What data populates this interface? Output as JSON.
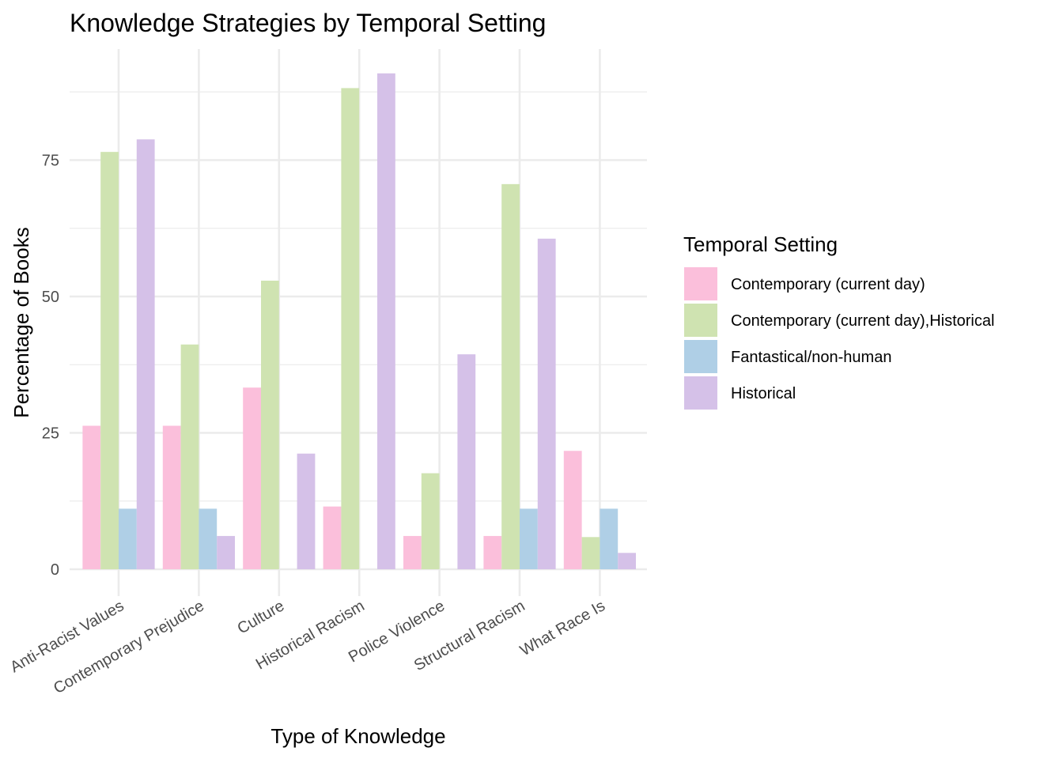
{
  "chart_data": {
    "type": "bar",
    "title": "Knowledge Strategies by Temporal Setting",
    "xlabel": "Type of Knowledge",
    "ylabel": "Percentage of Books",
    "categories": [
      "Anti-Racist Values",
      "Contemporary Prejudice",
      "Culture",
      "Historical Racism",
      "Police Violence",
      "Structural Racism",
      "What Race Is"
    ],
    "y_ticks": [
      0,
      25,
      50,
      75
    ],
    "ylim": [
      0,
      92
    ],
    "grid": true,
    "legend": {
      "title": "Temporal Setting",
      "placement": "right"
    },
    "series": [
      {
        "name": "Contemporary (current day)",
        "color": "#fbbfdb",
        "values": [
          26.3,
          26.3,
          33.3,
          11.5,
          6.1,
          6.1,
          21.7
        ]
      },
      {
        "name": "Contemporary (current day),Historical",
        "color": "#cfe3b1",
        "values": [
          76.5,
          41.2,
          52.9,
          88.2,
          17.6,
          70.6,
          5.9
        ]
      },
      {
        "name": "Fantastical/non-human",
        "color": "#afcfe6",
        "values": [
          11.1,
          11.1,
          0,
          0,
          0,
          11.1,
          11.1
        ]
      },
      {
        "name": "Historical",
        "color": "#d5c1e8",
        "values": [
          78.8,
          6.1,
          21.2,
          90.9,
          39.4,
          60.6,
          3.0
        ]
      }
    ]
  }
}
